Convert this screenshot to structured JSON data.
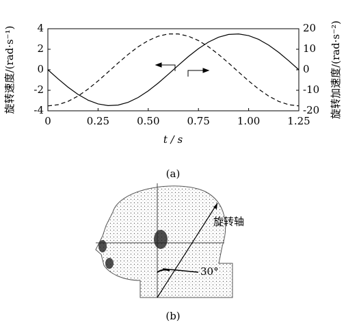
{
  "chart_data": {
    "type": "line",
    "x_label": "t / s",
    "y_label": "旋转速度/(rad·s⁻¹)",
    "y2_label": "旋转加速度/(rad·s⁻²)",
    "x": [
      0,
      0.05,
      0.1,
      0.15,
      0.2,
      0.25,
      0.3,
      0.35,
      0.4,
      0.45,
      0.5,
      0.55,
      0.6,
      0.65,
      0.7,
      0.75,
      0.8,
      0.85,
      0.9,
      0.95,
      1.0,
      1.05,
      1.1,
      1.15,
      1.2,
      1.25
    ],
    "series": [
      {
        "color": "#000000",
        "dash": false,
        "values": [
          0,
          -0.87,
          -1.69,
          -2.4,
          -2.96,
          -3.33,
          -3.49,
          -3.44,
          -3.17,
          -2.7,
          -2.06,
          -1.29,
          -0.44,
          0.44,
          1.29,
          2.06,
          2.7,
          3.17,
          3.44,
          3.49,
          3.33,
          2.96,
          2.4,
          1.69,
          0.87,
          0
        ]
      },
      {
        "color": "#000000",
        "dash": true,
        "axis": "y2",
        "values": [
          -17.6,
          -17.05,
          -15.42,
          -12.83,
          -9.43,
          -5.44,
          -1.11,
          3.3,
          7.49,
          11.22,
          14.24,
          16.36,
          17.46,
          17.46,
          16.36,
          14.24,
          11.22,
          7.49,
          3.3,
          -1.11,
          -5.44,
          -9.43,
          -12.83,
          -15.42,
          -17.05,
          -17.6
        ]
      }
    ],
    "xlim": [
      0,
      1.25
    ],
    "xticks": [
      0,
      0.25,
      {
        "value": 0.5,
        "label": "0.50"
      },
      0.75,
      {
        "value": 1,
        "label": "1.00"
      },
      1.25
    ],
    "ylim": [
      -4,
      4
    ],
    "yticks": [
      -4,
      -2,
      0,
      2,
      4
    ],
    "y2lim": [
      -20,
      20
    ],
    "y2ticks": [
      -20,
      -10,
      0,
      10,
      20
    ]
  },
  "caption_a": "(a)",
  "diagram": {
    "axis_label": "旋转轴",
    "angle_label": "30°",
    "caption": "(b)"
  }
}
